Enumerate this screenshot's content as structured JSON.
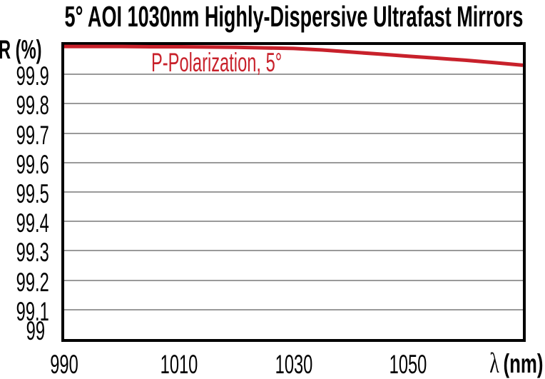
{
  "figure": {
    "title": "5° AOI 1030nm Highly-Dispersive Ultrafast Mirrors",
    "y_axis_label": "R (%)",
    "x_axis_label_symbol": "λ",
    "x_axis_label_unit": "(nm)",
    "legend": "P-Polarization, 5°"
  },
  "colors": {
    "curve_red": "#c8212b",
    "grid_gray": "#9a9a9a",
    "frame_black": "#000000",
    "background": "#ffffff"
  },
  "chart_data": {
    "type": "line",
    "title": "5° AOI 1030nm Highly-Dispersive Ultrafast Mirrors",
    "xlabel": "λ (nm)",
    "ylabel": "R (%)",
    "xlim": [
      990,
      1070
    ],
    "ylim": [
      99,
      100
    ],
    "x_tick_values": [
      990,
      1010,
      1030,
      1050
    ],
    "x_tick_labels": [
      "990",
      "1010",
      "1030",
      "1050"
    ],
    "y_tick_values": [
      99,
      99.1,
      99.2,
      99.3,
      99.4,
      99.5,
      99.6,
      99.7,
      99.8,
      99.9
    ],
    "y_tick_labels": [
      "99",
      "99.1",
      "99.2",
      "99.3",
      "99.4",
      "99.5",
      "99.6",
      "99.7",
      "99.8",
      "99.9"
    ],
    "grid": "horizontal-only",
    "legend_position": "inside-top-left",
    "series": [
      {
        "name": "P-Polarization, 5°",
        "color": "#c8212b",
        "x": [
          990,
          995,
          1000,
          1005,
          1010,
          1015,
          1020,
          1025,
          1030,
          1035,
          1040,
          1045,
          1050,
          1055,
          1060,
          1065,
          1070
        ],
        "y": [
          99.995,
          99.995,
          99.995,
          99.994,
          99.994,
          99.993,
          99.992,
          99.99,
          99.988,
          99.983,
          99.976,
          99.969,
          99.962,
          99.955,
          99.948,
          99.94,
          99.931
        ]
      }
    ]
  }
}
